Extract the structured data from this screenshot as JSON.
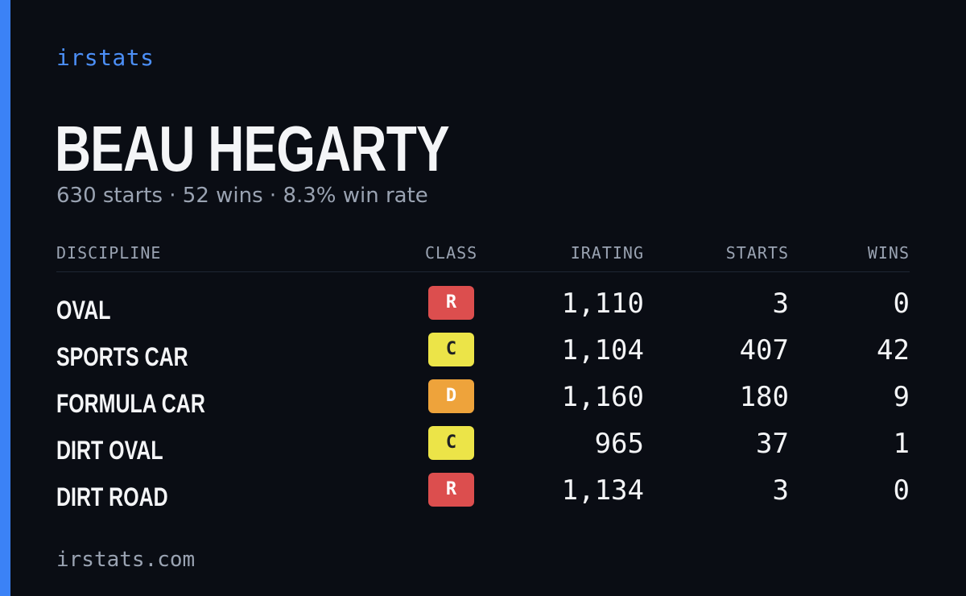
{
  "brand": "irstats",
  "driver": {
    "name": "BEAU HEGARTY",
    "summary": "630 starts · 52 wins · 8.3% win rate"
  },
  "table": {
    "headers": {
      "discipline": "DISCIPLINE",
      "class": "CLASS",
      "irating": "IRATING",
      "starts": "STARTS",
      "wins": "WINS"
    },
    "rows": [
      {
        "discipline": "OVAL",
        "class": "R",
        "irating": "1,110",
        "starts": "3",
        "wins": "0"
      },
      {
        "discipline": "SPORTS CAR",
        "class": "C",
        "irating": "1,104",
        "starts": "407",
        "wins": "42"
      },
      {
        "discipline": "FORMULA CAR",
        "class": "D",
        "irating": "1,160",
        "starts": "180",
        "wins": "9"
      },
      {
        "discipline": "DIRT OVAL",
        "class": "C",
        "irating": "965",
        "starts": "37",
        "wins": "1"
      },
      {
        "discipline": "DIRT ROAD",
        "class": "R",
        "irating": "1,134",
        "starts": "3",
        "wins": "0"
      }
    ]
  },
  "class_colors": {
    "R": {
      "bg": "#dc4e4e",
      "fg": "#ffffff"
    },
    "D": {
      "bg": "#eea33b",
      "fg": "#ffffff"
    },
    "C": {
      "bg": "#ece448",
      "fg": "#1d1f24"
    }
  },
  "accent_color": "#3b82f6",
  "footer": "irstats.com"
}
